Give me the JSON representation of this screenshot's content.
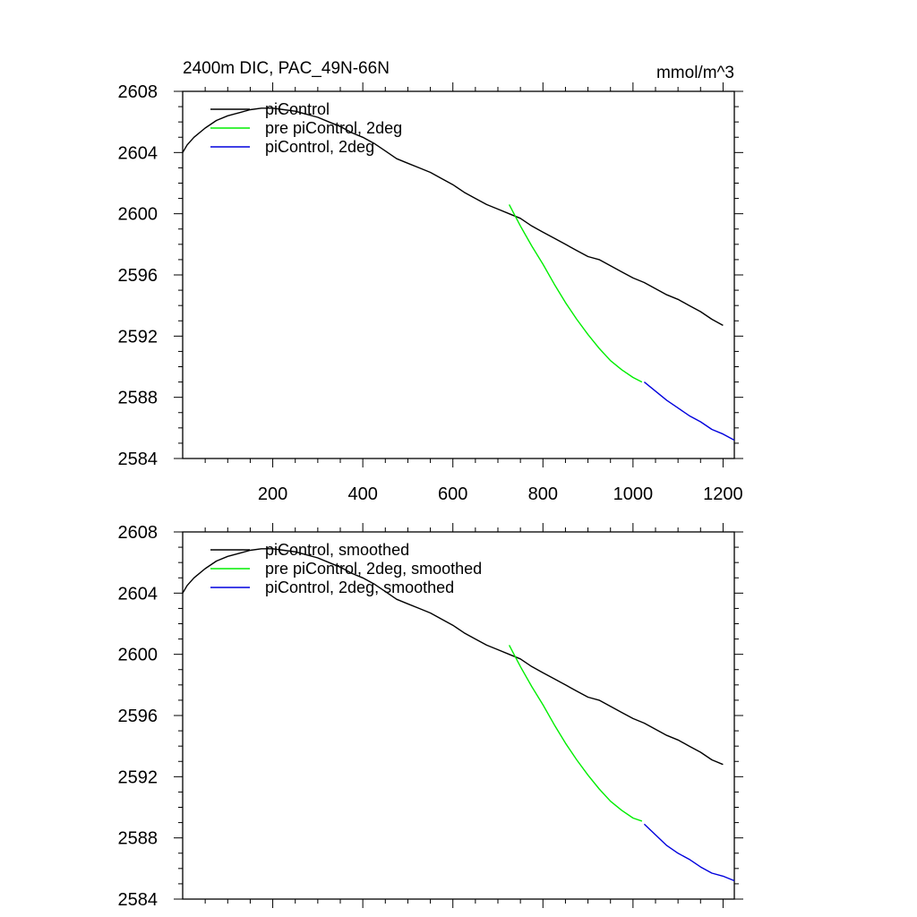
{
  "figure": {
    "title": "2400m DIC, PAC_49N-66N",
    "units": "mmol/m^3"
  },
  "chart_data": [
    {
      "type": "line",
      "panel": "top",
      "title": "2400m DIC, PAC_49N-66N",
      "units_label": "mmol/m^3",
      "xlim": [
        0,
        1225
      ],
      "ylim": [
        2584,
        2608
      ],
      "xticks": [
        200,
        400,
        600,
        800,
        1000,
        1200
      ],
      "xtick_labels": [
        "200",
        "400",
        "600",
        "800",
        "1000",
        "1200"
      ],
      "yticks": [
        2584,
        2588,
        2592,
        2596,
        2600,
        2604,
        2608
      ],
      "ytick_labels": [
        "2584",
        "2588",
        "2592",
        "2596",
        "2600",
        "2604",
        "2608"
      ],
      "legend_position": "top-left",
      "series": [
        {
          "name": "piControl",
          "color": "#000000",
          "x": [
            0,
            10,
            25,
            50,
            75,
            100,
            125,
            150,
            175,
            200,
            225,
            250,
            275,
            300,
            325,
            350,
            375,
            400,
            425,
            450,
            475,
            500,
            525,
            550,
            575,
            600,
            625,
            650,
            675,
            700,
            725,
            750,
            775,
            800,
            825,
            850,
            875,
            900,
            925,
            950,
            975,
            1000,
            1025,
            1050,
            1075,
            1100,
            1125,
            1150,
            1175,
            1200
          ],
          "y": [
            2604.0,
            2604.5,
            2605.0,
            2605.6,
            2606.1,
            2606.4,
            2606.6,
            2606.8,
            2606.9,
            2606.9,
            2606.8,
            2606.7,
            2606.5,
            2606.3,
            2606.0,
            2605.7,
            2605.3,
            2605.0,
            2604.6,
            2604.1,
            2603.6,
            2603.3,
            2603.0,
            2602.7,
            2602.3,
            2601.9,
            2601.4,
            2601.0,
            2600.6,
            2600.3,
            2600.0,
            2599.7,
            2599.2,
            2598.8,
            2598.4,
            2598.0,
            2597.6,
            2597.2,
            2597.0,
            2596.6,
            2596.2,
            2595.8,
            2595.5,
            2595.1,
            2594.7,
            2594.4,
            2594.0,
            2593.6,
            2593.1,
            2592.7
          ]
        },
        {
          "name": "pre piControl, 2deg",
          "color": "#00ee00",
          "x": [
            725,
            750,
            775,
            800,
            825,
            850,
            875,
            900,
            925,
            950,
            975,
            1000,
            1020
          ],
          "y": [
            2600.6,
            2599.2,
            2597.9,
            2596.7,
            2595.4,
            2594.2,
            2593.1,
            2592.1,
            2591.2,
            2590.4,
            2589.8,
            2589.3,
            2589.0
          ]
        },
        {
          "name": "piControl, 2deg",
          "color": "#0000dd",
          "x": [
            1025,
            1050,
            1075,
            1100,
            1125,
            1150,
            1175,
            1200,
            1225
          ],
          "y": [
            2589.0,
            2588.4,
            2587.8,
            2587.3,
            2586.8,
            2586.4,
            2585.9,
            2585.6,
            2585.2
          ]
        }
      ]
    },
    {
      "type": "line",
      "panel": "bottom",
      "xlim": [
        0,
        1225
      ],
      "ylim": [
        2584,
        2608
      ],
      "xticks": [
        200,
        400,
        600,
        800,
        1000,
        1200
      ],
      "yticks": [
        2584,
        2588,
        2592,
        2596,
        2600,
        2604,
        2608
      ],
      "ytick_labels": [
        "2584",
        "2588",
        "2592",
        "2596",
        "2600",
        "2604",
        "2608"
      ],
      "legend_position": "top-left",
      "series": [
        {
          "name": "piControl, smoothed",
          "color": "#000000",
          "x": [
            0,
            10,
            25,
            50,
            75,
            100,
            125,
            150,
            175,
            200,
            225,
            250,
            275,
            300,
            325,
            350,
            375,
            400,
            425,
            450,
            475,
            500,
            525,
            550,
            575,
            600,
            625,
            650,
            675,
            700,
            725,
            750,
            775,
            800,
            825,
            850,
            875,
            900,
            925,
            950,
            975,
            1000,
            1025,
            1050,
            1075,
            1100,
            1125,
            1150,
            1175,
            1200
          ],
          "y": [
            2604.0,
            2604.5,
            2605.0,
            2605.6,
            2606.1,
            2606.4,
            2606.6,
            2606.8,
            2606.9,
            2606.9,
            2606.8,
            2606.7,
            2606.5,
            2606.3,
            2606.0,
            2605.7,
            2605.3,
            2605.0,
            2604.6,
            2604.1,
            2603.6,
            2603.3,
            2603.0,
            2602.7,
            2602.3,
            2601.9,
            2601.4,
            2601.0,
            2600.6,
            2600.3,
            2600.0,
            2599.7,
            2599.2,
            2598.8,
            2598.4,
            2598.0,
            2597.6,
            2597.2,
            2597.0,
            2596.6,
            2596.2,
            2595.8,
            2595.5,
            2595.1,
            2594.7,
            2594.4,
            2594.0,
            2593.6,
            2593.1,
            2592.8
          ]
        },
        {
          "name": "pre piControl, 2deg, smoothed",
          "color": "#00ee00",
          "x": [
            725,
            750,
            775,
            800,
            825,
            850,
            875,
            900,
            925,
            950,
            975,
            1000,
            1020
          ],
          "y": [
            2600.6,
            2599.2,
            2597.9,
            2596.7,
            2595.4,
            2594.2,
            2593.1,
            2592.1,
            2591.2,
            2590.4,
            2589.8,
            2589.3,
            2589.1
          ]
        },
        {
          "name": "piControl, 2deg, smoothed",
          "color": "#0000dd",
          "x": [
            1025,
            1050,
            1075,
            1100,
            1125,
            1150,
            1175,
            1200,
            1225
          ],
          "y": [
            2588.9,
            2588.2,
            2587.5,
            2587.0,
            2586.6,
            2586.1,
            2585.7,
            2585.5,
            2585.2
          ]
        }
      ]
    }
  ]
}
